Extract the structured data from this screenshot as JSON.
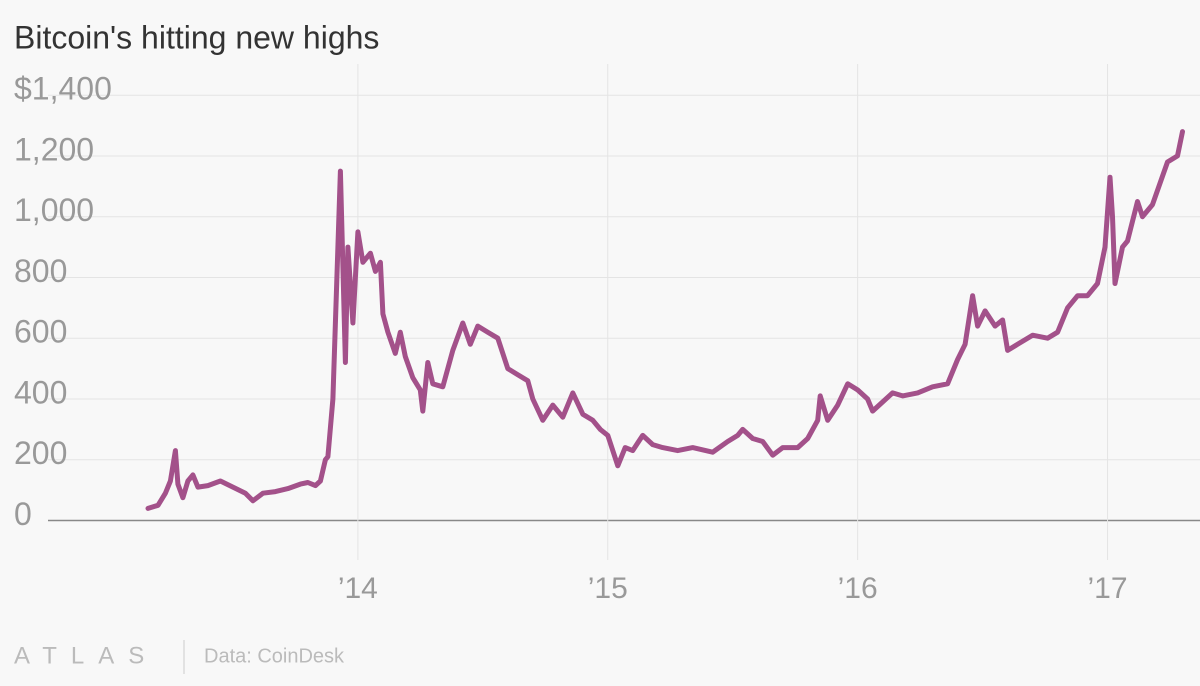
{
  "chart_data": {
    "type": "line",
    "title": "Bitcoin's hitting new highs",
    "source": "Data: CoinDesk",
    "brand": "ATLAS",
    "x": [
      2013.16,
      2013.2,
      2013.23,
      2013.25,
      2013.27,
      2013.28,
      2013.3,
      2013.32,
      2013.34,
      2013.36,
      2013.4,
      2013.45,
      2013.5,
      2013.55,
      2013.58,
      2013.62,
      2013.67,
      2013.72,
      2013.77,
      2013.8,
      2013.83,
      2013.85,
      2013.87,
      2013.88,
      2013.9,
      2013.91,
      2013.93,
      2013.95,
      2013.96,
      2013.98,
      2014.0,
      2014.02,
      2014.05,
      2014.07,
      2014.09,
      2014.1,
      2014.12,
      2014.15,
      2014.17,
      2014.19,
      2014.22,
      2014.25,
      2014.26,
      2014.28,
      2014.3,
      2014.34,
      2014.38,
      2014.42,
      2014.45,
      2014.48,
      2014.52,
      2014.56,
      2014.6,
      2014.64,
      2014.68,
      2014.7,
      2014.74,
      2014.78,
      2014.82,
      2014.86,
      2014.9,
      2014.94,
      2014.97,
      2015.0,
      2015.04,
      2015.07,
      2015.1,
      2015.14,
      2015.18,
      2015.22,
      2015.28,
      2015.34,
      2015.42,
      2015.48,
      2015.52,
      2015.54,
      2015.58,
      2015.62,
      2015.66,
      2015.7,
      2015.76,
      2015.8,
      2015.84,
      2015.85,
      2015.88,
      2015.92,
      2015.96,
      2016.0,
      2016.04,
      2016.06,
      2016.1,
      2016.14,
      2016.18,
      2016.24,
      2016.3,
      2016.36,
      2016.4,
      2016.43,
      2016.46,
      2016.48,
      2016.51,
      2016.55,
      2016.58,
      2016.6,
      2016.64,
      2016.7,
      2016.76,
      2016.8,
      2016.84,
      2016.88,
      2016.92,
      2016.96,
      2016.99,
      2017.01,
      2017.02,
      2017.03,
      2017.06,
      2017.08,
      2017.12,
      2017.14,
      2017.18,
      2017.24,
      2017.28,
      2017.3
    ],
    "values": [
      40,
      50,
      90,
      130,
      230,
      120,
      75,
      130,
      150,
      110,
      115,
      130,
      110,
      90,
      65,
      90,
      95,
      105,
      120,
      125,
      115,
      130,
      200,
      210,
      400,
      650,
      1150,
      520,
      900,
      650,
      950,
      850,
      880,
      820,
      850,
      680,
      620,
      550,
      620,
      540,
      470,
      430,
      360,
      520,
      450,
      440,
      560,
      650,
      580,
      640,
      620,
      600,
      500,
      480,
      460,
      400,
      330,
      380,
      340,
      420,
      350,
      330,
      300,
      280,
      180,
      240,
      230,
      280,
      250,
      240,
      230,
      240,
      225,
      260,
      280,
      300,
      270,
      260,
      215,
      240,
      240,
      270,
      330,
      410,
      330,
      380,
      450,
      430,
      400,
      360,
      390,
      420,
      410,
      420,
      440,
      450,
      530,
      580,
      740,
      640,
      690,
      640,
      660,
      560,
      580,
      610,
      600,
      620,
      700,
      740,
      740,
      780,
      900,
      1130,
      1000,
      780,
      900,
      920,
      1050,
      1000,
      1040,
      1180,
      1200,
      1280
    ],
    "color": "#a3518a",
    "xlim": [
      2012.76,
      2017.37
    ],
    "xticks": [
      {
        "value": 2014,
        "label": "’14"
      },
      {
        "value": 2015,
        "label": "’15"
      },
      {
        "value": 2016,
        "label": "’16"
      },
      {
        "value": 2017,
        "label": "’17"
      }
    ],
    "ylim": [
      -130,
      1450
    ],
    "yticks": [
      0,
      200,
      400,
      600,
      800,
      {
        "value": 1000,
        "label": "1,000"
      },
      {
        "value": 1200,
        "label": "1,200"
      },
      {
        "value": 1400,
        "label": "$1,400"
      }
    ],
    "grid": true
  }
}
